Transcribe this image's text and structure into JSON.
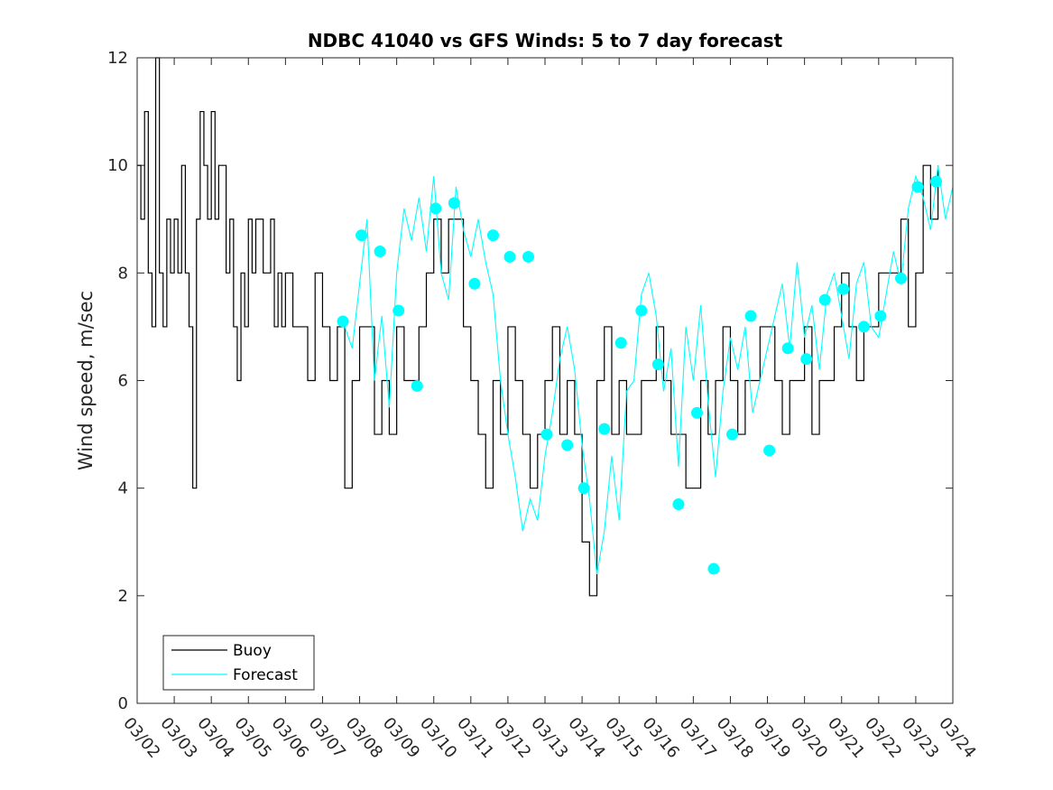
{
  "chart_data": {
    "type": "line",
    "title": "NDBC 41040 vs GFS Winds: 5 to 7 day forecast",
    "xlabel": "",
    "ylabel": "Wind speed, m/sec",
    "xlim": [
      0,
      22
    ],
    "ylim": [
      0,
      12
    ],
    "yticks": [
      0,
      2,
      4,
      6,
      8,
      10,
      12
    ],
    "xtick_labels": [
      "03/02",
      "03/03",
      "03/04",
      "03/05",
      "03/06",
      "03/07",
      "03/08",
      "03/09",
      "03/10",
      "03/11",
      "03/12",
      "03/13",
      "03/14",
      "03/15",
      "03/16",
      "03/17",
      "03/18",
      "03/19",
      "03/20",
      "03/21",
      "03/22",
      "03/23",
      "03/24"
    ],
    "legend": {
      "position": "bottom-left",
      "entries": [
        "Buoy",
        "Forecast"
      ]
    },
    "colors": {
      "buoy": "#000000",
      "forecast": "#00ffff"
    },
    "series": [
      {
        "name": "Buoy",
        "x": [
          0.0,
          0.1,
          0.2,
          0.3,
          0.4,
          0.5,
          0.6,
          0.7,
          0.8,
          0.9,
          1.0,
          1.1,
          1.2,
          1.3,
          1.4,
          1.5,
          1.6,
          1.7,
          1.8,
          1.9,
          2.0,
          2.1,
          2.2,
          2.3,
          2.4,
          2.5,
          2.6,
          2.7,
          2.8,
          2.9,
          3.0,
          3.1,
          3.2,
          3.3,
          3.4,
          3.5,
          3.6,
          3.7,
          3.8,
          3.9,
          4.0,
          4.2,
          4.4,
          4.6,
          4.8,
          5.0,
          5.2,
          5.4,
          5.6,
          5.8,
          6.0,
          6.2,
          6.4,
          6.6,
          6.8,
          7.0,
          7.2,
          7.4,
          7.6,
          7.8,
          8.0,
          8.2,
          8.4,
          8.6,
          8.8,
          9.0,
          9.2,
          9.4,
          9.6,
          9.8,
          10.0,
          10.2,
          10.4,
          10.6,
          10.8,
          11.0,
          11.2,
          11.4,
          11.6,
          11.8,
          12.0,
          12.2,
          12.4,
          12.6,
          12.8,
          13.0,
          13.2,
          13.4,
          13.6,
          13.8,
          14.0,
          14.2,
          14.4,
          14.6,
          14.8,
          15.0,
          15.2,
          15.4,
          15.6,
          15.8,
          16.0,
          16.2,
          16.4,
          16.6,
          16.8,
          17.0,
          17.2,
          17.4,
          17.6,
          17.8,
          18.0,
          18.2,
          18.4,
          18.6,
          18.8,
          19.0,
          19.2,
          19.4,
          19.6,
          19.8,
          20.0,
          20.2,
          20.4,
          20.6,
          20.8,
          21.0,
          21.2,
          21.4,
          21.6
        ],
        "y": [
          10,
          9,
          11,
          8,
          7,
          12,
          8,
          7,
          9,
          8,
          9,
          8,
          10,
          8,
          7,
          4,
          9,
          11,
          10,
          9,
          11,
          9,
          10,
          10,
          8,
          9,
          7,
          6,
          8,
          7,
          9,
          8,
          9,
          9,
          8,
          8,
          9,
          7,
          8,
          7,
          8,
          7,
          7,
          6,
          8,
          7,
          6,
          7,
          4,
          6,
          7,
          7,
          5,
          6,
          5,
          7,
          6,
          6,
          7,
          8,
          9,
          8,
          9,
          9,
          7,
          6,
          5,
          4,
          6,
          5,
          7,
          6,
          5,
          4,
          5,
          6,
          7,
          5,
          6,
          5,
          3,
          2,
          6,
          7,
          5,
          6,
          5,
          5,
          6,
          6,
          7,
          6,
          5,
          5,
          4,
          4,
          6,
          5,
          6,
          7,
          6,
          5,
          6,
          6,
          7,
          7,
          6,
          5,
          6,
          6,
          7,
          5,
          6,
          6,
          7,
          8,
          7,
          6,
          7,
          7,
          8,
          8,
          8,
          9,
          7,
          8,
          10,
          9,
          10
        ],
        "style": "stairs-thin-black"
      },
      {
        "name": "Forecast",
        "x": [
          5.6,
          5.8,
          6.0,
          6.2,
          6.4,
          6.6,
          6.8,
          7.0,
          7.2,
          7.4,
          7.6,
          7.8,
          8.0,
          8.2,
          8.4,
          8.6,
          8.8,
          9.0,
          9.2,
          9.4,
          9.6,
          9.8,
          10.0,
          10.2,
          10.4,
          10.6,
          10.8,
          11.0,
          11.2,
          11.4,
          11.6,
          11.8,
          12.0,
          12.2,
          12.4,
          12.6,
          12.8,
          13.0,
          13.2,
          13.4,
          13.6,
          13.8,
          14.0,
          14.2,
          14.4,
          14.6,
          14.8,
          15.0,
          15.2,
          15.4,
          15.6,
          15.8,
          16.0,
          16.2,
          16.4,
          16.6,
          16.8,
          17.0,
          17.2,
          17.4,
          17.6,
          17.8,
          18.0,
          18.2,
          18.4,
          18.6,
          18.8,
          19.0,
          19.2,
          19.4,
          19.6,
          19.8,
          20.0,
          20.2,
          20.4,
          20.6,
          20.8,
          21.0,
          21.2,
          21.4,
          21.6,
          21.8,
          22.0
        ],
        "y": [
          7.0,
          6.6,
          7.8,
          9.0,
          6.0,
          7.2,
          5.5,
          8.0,
          9.2,
          8.6,
          9.4,
          8.4,
          9.8,
          8.0,
          7.5,
          9.6,
          8.8,
          8.3,
          9.0,
          8.2,
          7.6,
          6.0,
          5.0,
          4.2,
          3.2,
          3.8,
          3.4,
          4.6,
          5.4,
          6.4,
          7.0,
          6.2,
          4.8,
          3.8,
          2.4,
          3.2,
          4.6,
          3.4,
          5.8,
          6.0,
          7.6,
          8.0,
          7.2,
          5.8,
          6.6,
          4.4,
          7.0,
          6.0,
          7.4,
          5.6,
          4.2,
          5.8,
          6.8,
          6.2,
          7.0,
          5.4,
          6.0,
          6.6,
          7.2,
          7.8,
          6.6,
          8.2,
          6.8,
          7.4,
          6.2,
          7.6,
          8.0,
          7.2,
          6.4,
          7.8,
          8.2,
          7.0,
          6.8,
          7.6,
          8.4,
          7.8,
          9.2,
          9.8,
          9.4,
          8.8,
          10.0,
          9.0,
          9.6
        ],
        "style": "thin-cyan"
      },
      {
        "name": "Forecast-markers",
        "x": [
          5.55,
          6.05,
          6.55,
          7.05,
          7.55,
          8.05,
          8.55,
          9.1,
          9.6,
          10.05,
          10.55,
          11.05,
          11.6,
          12.05,
          12.6,
          13.05,
          13.6,
          14.05,
          14.6,
          15.1,
          15.55,
          16.05,
          16.55,
          17.05,
          17.55,
          18.05,
          18.55,
          19.05,
          19.6,
          20.05,
          20.6,
          21.05,
          21.55
        ],
        "y": [
          7.1,
          8.7,
          8.4,
          7.3,
          5.9,
          9.2,
          9.3,
          7.8,
          8.7,
          8.3,
          8.3,
          5.0,
          4.8,
          4.0,
          5.1,
          6.7,
          7.3,
          6.3,
          3.7,
          5.4,
          2.5,
          5.0,
          7.2,
          4.7,
          6.6,
          6.4,
          7.5,
          7.7,
          7.0,
          7.2,
          7.9,
          9.6,
          9.7
        ],
        "style": "cyan-dots"
      }
    ]
  }
}
